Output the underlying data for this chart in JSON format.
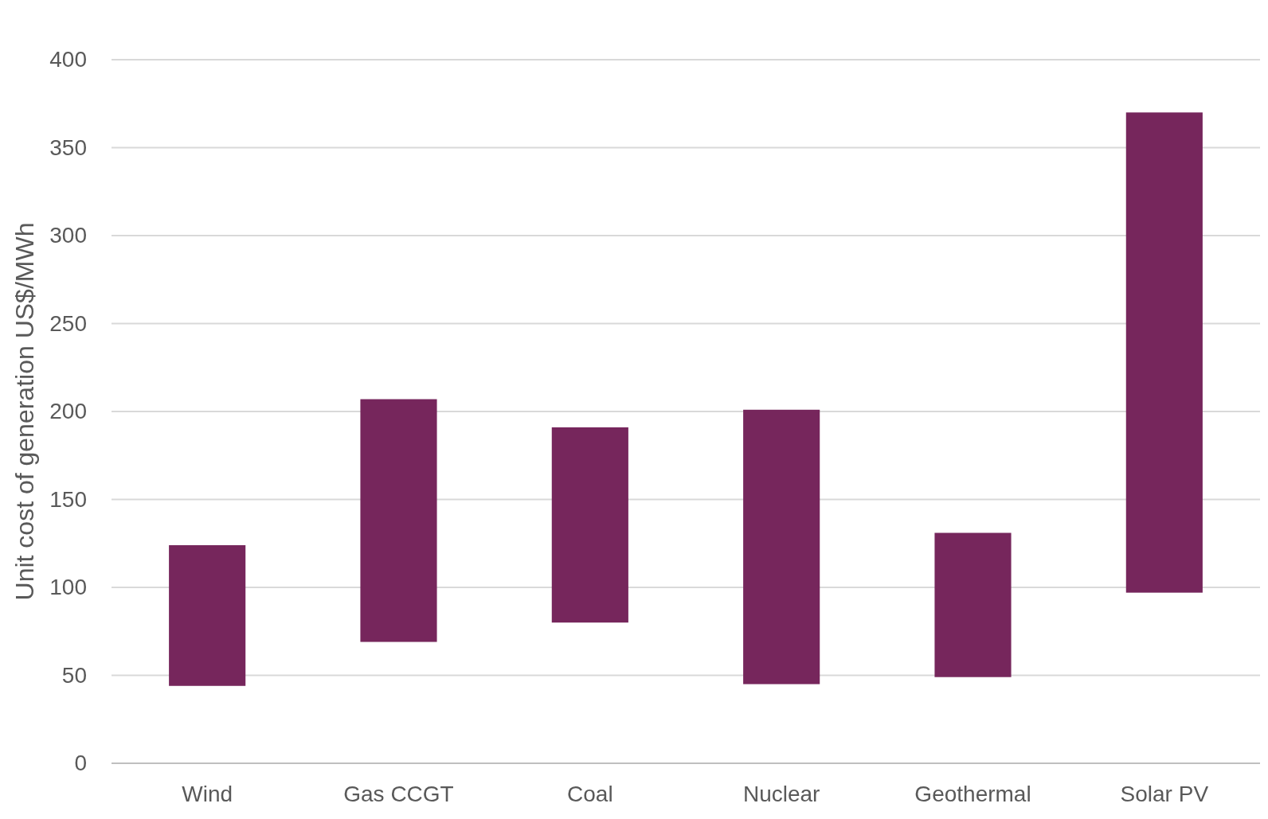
{
  "chart_data": {
    "type": "bar",
    "ylabel": "Unit cost of generation US$/MWh",
    "categories": [
      "Wind",
      "Gas CCGT",
      "Coal",
      "Nuclear",
      "Geothermal",
      "Solar PV"
    ],
    "base": [
      44,
      69,
      80,
      45,
      49,
      97
    ],
    "values": [
      80,
      138,
      111,
      156,
      82,
      273
    ],
    "color": "#76265c",
    "ylim": [
      0,
      400
    ],
    "yticks": [
      0,
      50,
      100,
      150,
      200,
      250,
      300,
      350,
      400
    ],
    "grid": "y"
  }
}
